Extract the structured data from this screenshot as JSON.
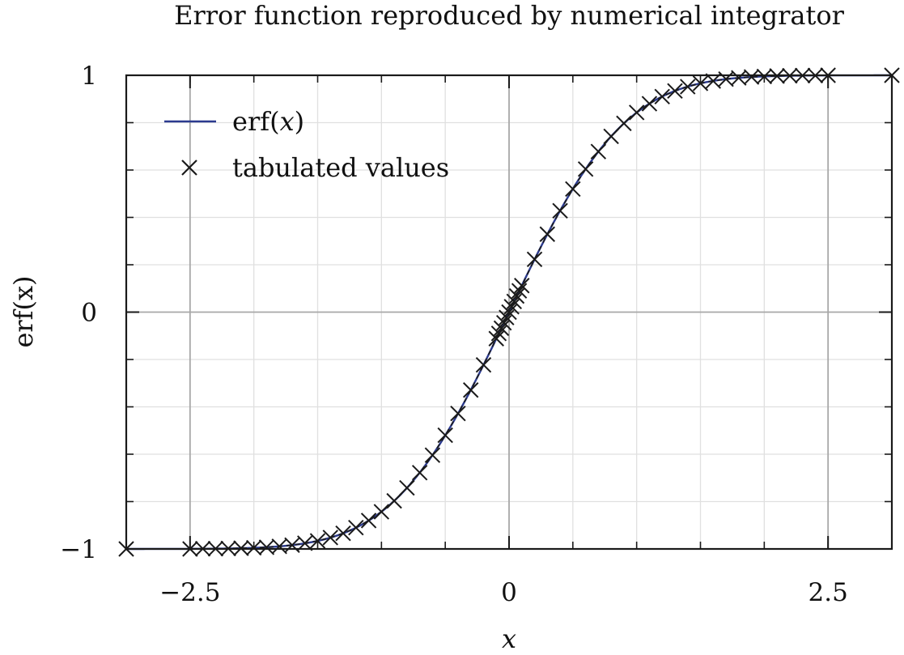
{
  "chart_data": {
    "type": "line",
    "title": "Error function reproduced by numerical integrator",
    "xlabel": "x",
    "ylabel": "erf(x)",
    "xlim": [
      -3,
      3
    ],
    "ylim": [
      -1,
      1
    ],
    "x_ticks": [
      -2.5,
      0,
      2.5
    ],
    "x_tick_labels": [
      "−2.5",
      "0",
      "2.5"
    ],
    "y_ticks": [
      -1,
      0,
      1
    ],
    "y_tick_labels": [
      "−1",
      "0",
      "1"
    ],
    "x_minor_step": 0.5,
    "y_minor_step": 0.2,
    "grid": true,
    "legend": {
      "position": "top-left",
      "entries": [
        {
          "label_prefix": "erf(",
          "label_var": "x",
          "label_suffix": ")",
          "style": "line",
          "color": "#2b3a8f"
        },
        {
          "label": "tabulated values",
          "style": "x-marker",
          "color": "#1a1a1a"
        }
      ]
    },
    "series": [
      {
        "kind": "function",
        "function": "erf",
        "x_range": [
          -3,
          3
        ],
        "color": "#2b3a8f"
      },
      {
        "kind": "points",
        "marker": "x",
        "color": "#1a1a1a",
        "x": [
          -3.0,
          -2.5,
          -2.4,
          -2.3,
          -2.2,
          -2.1,
          -2.0,
          -1.9,
          -1.8,
          -1.7,
          -1.6,
          -1.5,
          -1.4,
          -1.3,
          -1.2,
          -1.1,
          -1.0,
          -0.9,
          -0.8,
          -0.7,
          -0.6,
          -0.5,
          -0.4,
          -0.3,
          -0.2,
          -0.1,
          -0.08,
          -0.06,
          -0.04,
          -0.02,
          0.0,
          0.02,
          0.04,
          0.06,
          0.08,
          0.1,
          0.2,
          0.3,
          0.4,
          0.5,
          0.6,
          0.7,
          0.8,
          0.9,
          1.0,
          1.1,
          1.2,
          1.3,
          1.4,
          1.5,
          1.6,
          1.7,
          1.8,
          1.9,
          2.0,
          2.1,
          2.2,
          2.3,
          2.4,
          2.5,
          3.0
        ],
        "y": [
          -1.0,
          -1.0,
          -0.999,
          -0.999,
          -0.998,
          -0.997,
          -0.995,
          -0.993,
          -0.989,
          -0.984,
          -0.976,
          -0.966,
          -0.952,
          -0.934,
          -0.91,
          -0.88,
          -0.843,
          -0.797,
          -0.742,
          -0.678,
          -0.604,
          -0.52,
          -0.428,
          -0.329,
          -0.223,
          -0.112,
          -0.09,
          -0.068,
          -0.045,
          -0.023,
          0.0,
          0.023,
          0.045,
          0.068,
          0.09,
          0.112,
          0.223,
          0.329,
          0.428,
          0.52,
          0.604,
          0.678,
          0.742,
          0.797,
          0.843,
          0.88,
          0.91,
          0.934,
          0.952,
          0.966,
          0.976,
          0.984,
          0.989,
          0.993,
          0.995,
          0.997,
          0.998,
          0.999,
          0.999,
          1.0,
          1.0
        ]
      }
    ]
  }
}
